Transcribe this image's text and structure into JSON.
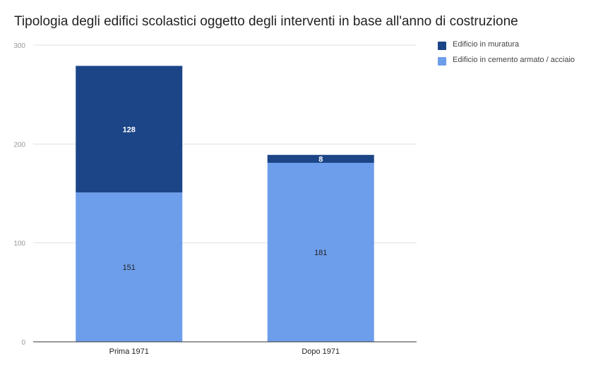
{
  "chart_data": {
    "type": "bar",
    "stacked": true,
    "title": "Tipologia degli edifici scolastici oggetto degli interventi in base all'anno di costruzione",
    "categories": [
      "Prima 1971",
      "Dopo 1971"
    ],
    "series": [
      {
        "name": "Edificio in cemento armato / acciaio",
        "values": [
          151,
          181
        ],
        "color": "#6d9eeb"
      },
      {
        "name": "Edificio in muratura",
        "values": [
          128,
          8
        ],
        "color": "#1c4587"
      }
    ],
    "ylim": [
      0,
      300
    ],
    "yticks": [
      0,
      100,
      200,
      300
    ],
    "xlabel": "",
    "ylabel": "",
    "grid": true,
    "legend_position": "right"
  },
  "legend": [
    {
      "label": "Edificio in muratura",
      "color": "#1c4587"
    },
    {
      "label": "Edificio in cemento armato / acciaio",
      "color": "#6d9eeb"
    }
  ]
}
